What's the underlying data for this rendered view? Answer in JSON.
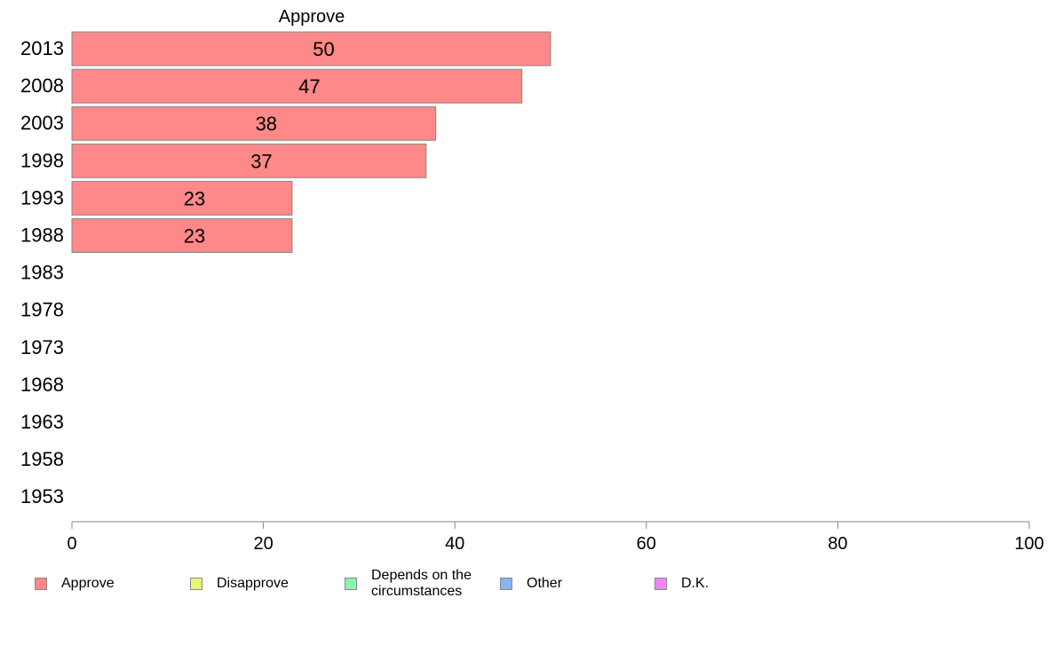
{
  "chart_data": {
    "type": "bar",
    "orientation": "horizontal",
    "panel_title": "Approve",
    "categories": [
      "2013",
      "2008",
      "2003",
      "1998",
      "1993",
      "1988",
      "1983",
      "1978",
      "1973",
      "1968",
      "1963",
      "1958",
      "1953"
    ],
    "series": [
      {
        "name": "Approve",
        "values": [
          50,
          47,
          38,
          37,
          23,
          23,
          null,
          null,
          null,
          null,
          null,
          null,
          null
        ],
        "color": "#ff8888"
      }
    ],
    "data_labels": [
      "50",
      "47",
      "38",
      "37",
      "23",
      "23"
    ],
    "xlim": [
      0,
      100
    ],
    "xticks": [
      "0",
      "20",
      "40",
      "60",
      "80",
      "100"
    ],
    "grid": false,
    "legend": [
      {
        "label": "Approve",
        "color": "#ff8888"
      },
      {
        "label": "Disapprove",
        "color": "#e8f57a"
      },
      {
        "label": "Depends on the circumstances",
        "color": "#88f5b0"
      },
      {
        "label": "Other",
        "color": "#88b4f0"
      },
      {
        "label": "D.K.",
        "color": "#ee88f0"
      }
    ],
    "legend_position": "bottom"
  }
}
